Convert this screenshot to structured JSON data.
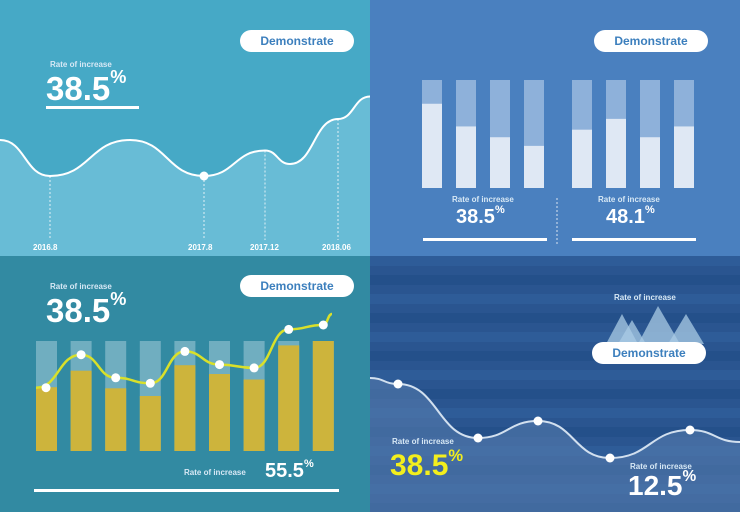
{
  "panel1": {
    "button": "Demonstrate",
    "label": "Rate of increase",
    "value": "38.5",
    "unit": "%"
  },
  "panel2": {
    "button": "Demonstrate",
    "left": {
      "label": "Rate of increase",
      "value": "38.5",
      "unit": "%"
    },
    "right": {
      "label": "Rate of increase",
      "value": "48.1",
      "unit": "%"
    }
  },
  "panel3": {
    "button": "Demonstrate",
    "label": "Rate of increase",
    "value": "38.5",
    "unit": "%",
    "bottom_label": "Rate of increase",
    "bottom_value": "55.5",
    "bottom_unit": "%"
  },
  "panel4": {
    "button": "Demonstrate",
    "top_label": "Rate of increase",
    "left_label": "Rate of increase",
    "left_value": "38.5",
    "left_unit": "%",
    "right_label": "Rate of increase",
    "right_value": "12.5",
    "right_unit": "%"
  },
  "colors": {
    "panel1_bg": "#46a9c6",
    "panel2_bg": "#4a80bf",
    "panel3_bg": "#328aa2",
    "panel4_bg": "#2a5590",
    "bar_gold": "#cdb43c",
    "line_yellow": "#d9e02a",
    "highlight_yellow": "#f3ef1d"
  },
  "chart_data": [
    {
      "type": "area",
      "x_ticks": [
        "2016.8",
        "2017.8",
        "2017.12",
        "2018.06"
      ],
      "values": [
        0.44,
        0.2,
        0.44,
        0.2,
        0.37,
        0.28,
        0.58,
        0.73
      ],
      "highlight_index": 3,
      "ylim": [
        0,
        1
      ]
    },
    {
      "type": "bar",
      "groups": [
        {
          "values": [
            0.78,
            0.57,
            0.47,
            0.39
          ],
          "max": 1
        },
        {
          "values": [
            0.54,
            0.64,
            0.47,
            0.57
          ],
          "max": 1
        }
      ]
    },
    {
      "type": "bar",
      "values": [
        0.58,
        0.73,
        0.57,
        0.5,
        0.78,
        0.7,
        0.65,
        0.96,
        1.0
      ],
      "max_values": [
        1,
        1,
        1,
        1,
        1,
        1,
        1,
        1,
        1
      ],
      "line": [
        0.43,
        0.73,
        0.52,
        0.47,
        0.76,
        0.64,
        0.61,
        0.96,
        1.0,
        1.1
      ],
      "ylim": [
        0,
        1.2
      ]
    },
    {
      "type": "line",
      "values": [
        0.85,
        0.8,
        0.5,
        0.65,
        0.4,
        0.57,
        0.54,
        0.43
      ],
      "points": [
        0.8,
        0.5,
        0.65,
        0.4,
        0.57
      ],
      "ylim": [
        0,
        1
      ]
    }
  ]
}
